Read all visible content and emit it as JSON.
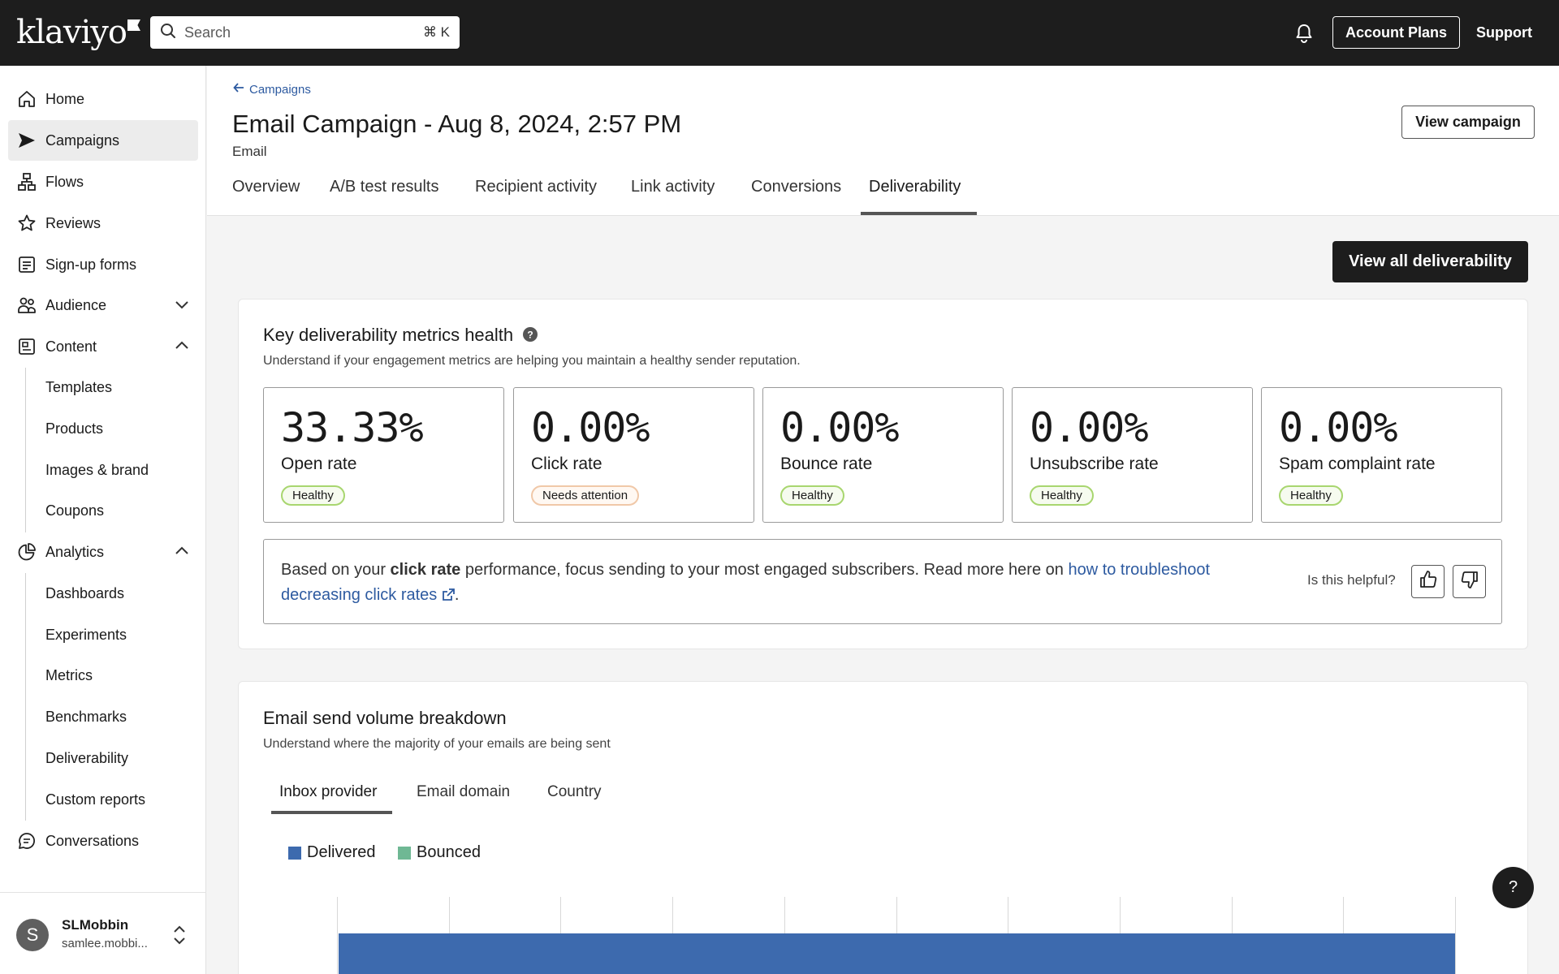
{
  "topbar": {
    "logo": "klaviyo",
    "search_placeholder": "Search",
    "search_shortcut": "⌘ K",
    "account_plans": "Account Plans",
    "support": "Support"
  },
  "sidebar": {
    "items": [
      {
        "label": "Home",
        "icon": "home-icon"
      },
      {
        "label": "Campaigns",
        "icon": "send-icon",
        "active": true
      },
      {
        "label": "Flows",
        "icon": "flows-icon"
      },
      {
        "label": "Reviews",
        "icon": "star-icon"
      },
      {
        "label": "Sign-up forms",
        "icon": "form-icon"
      },
      {
        "label": "Audience",
        "icon": "audience-icon",
        "chevron": "down"
      },
      {
        "label": "Content",
        "icon": "content-icon",
        "chevron": "up"
      },
      {
        "label": "Analytics",
        "icon": "analytics-icon",
        "chevron": "up"
      },
      {
        "label": "Conversations",
        "icon": "chat-icon"
      }
    ],
    "content_sub": [
      "Templates",
      "Products",
      "Images & brand",
      "Coupons"
    ],
    "analytics_sub": [
      "Dashboards",
      "Experiments",
      "Metrics",
      "Benchmarks",
      "Deliverability",
      "Custom reports"
    ],
    "user": {
      "initial": "S",
      "name": "SLMobbin",
      "email": "samlee.mobbi..."
    }
  },
  "header": {
    "breadcrumb": "Campaigns",
    "title": "Email Campaign - Aug 8, 2024, 2:57 PM",
    "subtitle": "Email",
    "view_campaign": "View campaign",
    "tabs": [
      "Overview",
      "A/B test results",
      "Recipient activity",
      "Link activity",
      "Conversions",
      "Deliverability"
    ],
    "active_tab": "Deliverability"
  },
  "main": {
    "view_all": "View all deliverability",
    "health": {
      "title": "Key deliverability metrics health",
      "description": "Understand if your engagement metrics are helping you maintain a healthy sender reputation.",
      "metrics": [
        {
          "value": "33.33%",
          "name": "Open rate",
          "status": "Healthy"
        },
        {
          "value": "0.00%",
          "name": "Click rate",
          "status": "Needs attention"
        },
        {
          "value": "0.00%",
          "name": "Bounce rate",
          "status": "Healthy"
        },
        {
          "value": "0.00%",
          "name": "Unsubscribe rate",
          "status": "Healthy"
        },
        {
          "value": "0.00%",
          "name": "Spam complaint rate",
          "status": "Healthy"
        }
      ],
      "advice": {
        "prefix": "Based on your ",
        "bold": "click rate",
        "middle": " performance, focus sending to your most engaged subscribers. Read more here on ",
        "link": "how to troubleshoot decreasing click rates",
        "suffix": "."
      },
      "helpful": "Is this helpful?"
    },
    "volume": {
      "title": "Email send volume breakdown",
      "description": "Understand where the majority of your emails are being sent",
      "tabs": [
        "Inbox provider",
        "Email domain",
        "Country"
      ],
      "active_tab": "Inbox provider"
    }
  },
  "chart_data": {
    "type": "bar",
    "series": [
      {
        "name": "Delivered",
        "color": "#3d6aae"
      },
      {
        "name": "Bounced",
        "color": "#6fb894"
      }
    ]
  },
  "help_fab": "?"
}
